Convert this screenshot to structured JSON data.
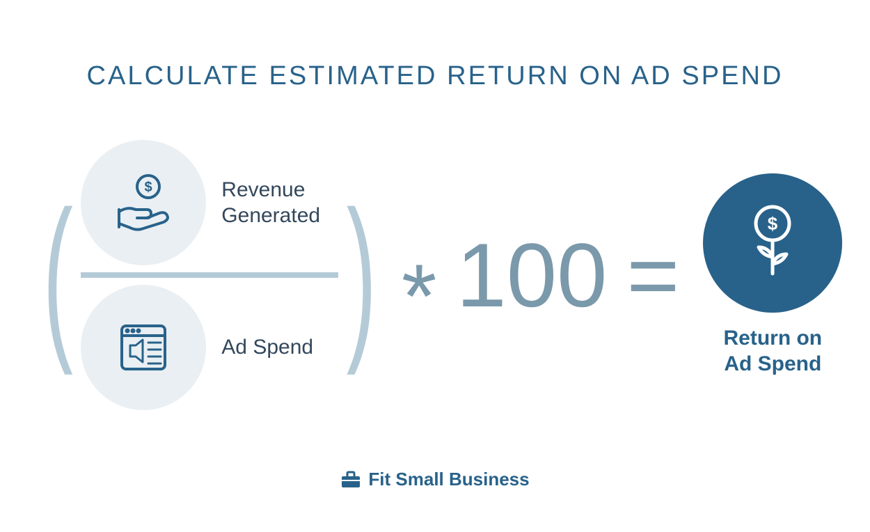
{
  "colors": {
    "primary": "#28628a",
    "light_circle": "#e9eff3",
    "divider": "#b4cbd7",
    "paren": "#b4cbd7",
    "op_text": "#7a99ab",
    "dark_circle": "#28628a",
    "title": "#28628a",
    "label": "#33475b",
    "result_label": "#28628a",
    "footer": "#28628a"
  },
  "title": {
    "text": "CALCULATE ESTIMATED RETURN ON AD SPEND",
    "fontsize": 38
  },
  "formula": {
    "numerator_label": "Revenue\nGenerated",
    "denominator_label": "Ad Spend",
    "multiply": "*",
    "hundred": "100",
    "equals": "=",
    "result_label": "Return on\nAd Spend",
    "label_fontsize": 30,
    "op_fontsize": 130,
    "paren_fontsize": 260,
    "result_fontsize": 30
  },
  "footer": {
    "text": "Fit Small Business",
    "fontsize": 26
  }
}
